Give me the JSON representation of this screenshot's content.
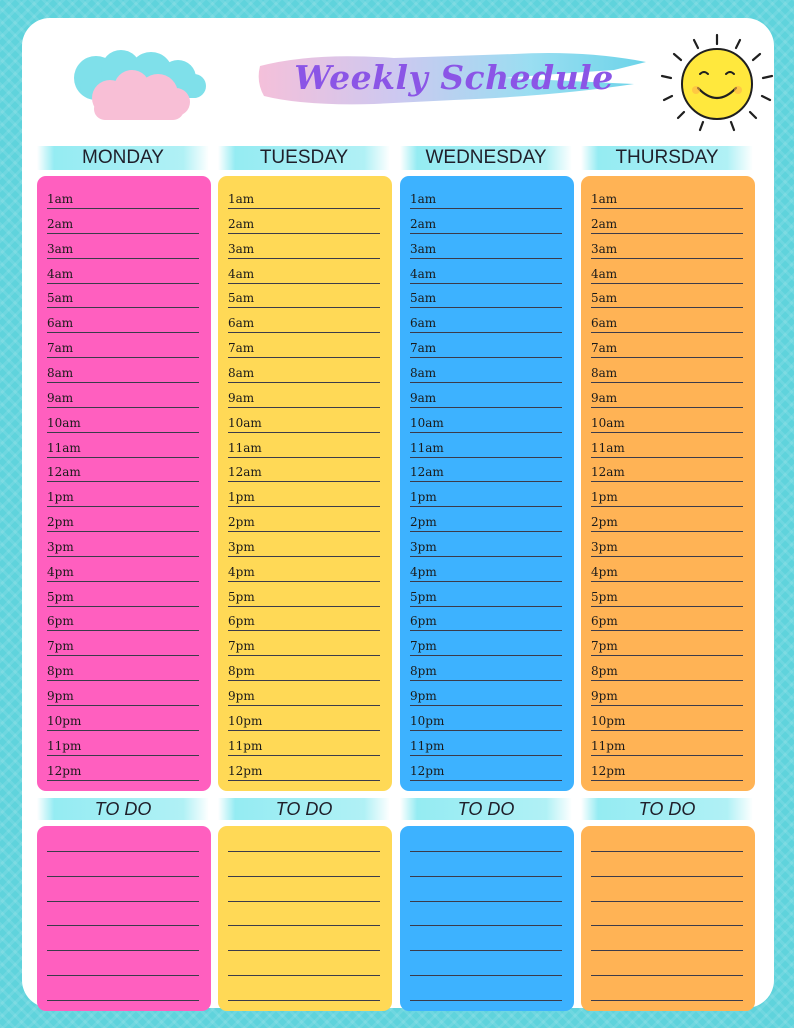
{
  "title": "Weekly Schedule",
  "days": [
    {
      "name": "MONDAY",
      "color": "#ff5fbf"
    },
    {
      "name": "TUESDAY",
      "color": "#ffd956"
    },
    {
      "name": "WEDNESDAY",
      "color": "#3db2ff"
    },
    {
      "name": "THURSDAY",
      "color": "#ffb355"
    }
  ],
  "time_slots": [
    "1am",
    "2am",
    "3am",
    "4am",
    "5am",
    "6am",
    "7am",
    "8am",
    "9am",
    "10am",
    "11am",
    "12am",
    "1pm",
    "2pm",
    "3pm",
    "4pm",
    "5pm",
    "6pm",
    "7pm",
    "8pm",
    "9pm",
    "10pm",
    "11pm",
    "12pm"
  ],
  "todo_label": "TO DO",
  "todo_line_count": 7,
  "decorations": {
    "left": "clouds-icon",
    "right": "smiling-sun-icon",
    "title_brush": "watercolor-brush-stroke"
  }
}
